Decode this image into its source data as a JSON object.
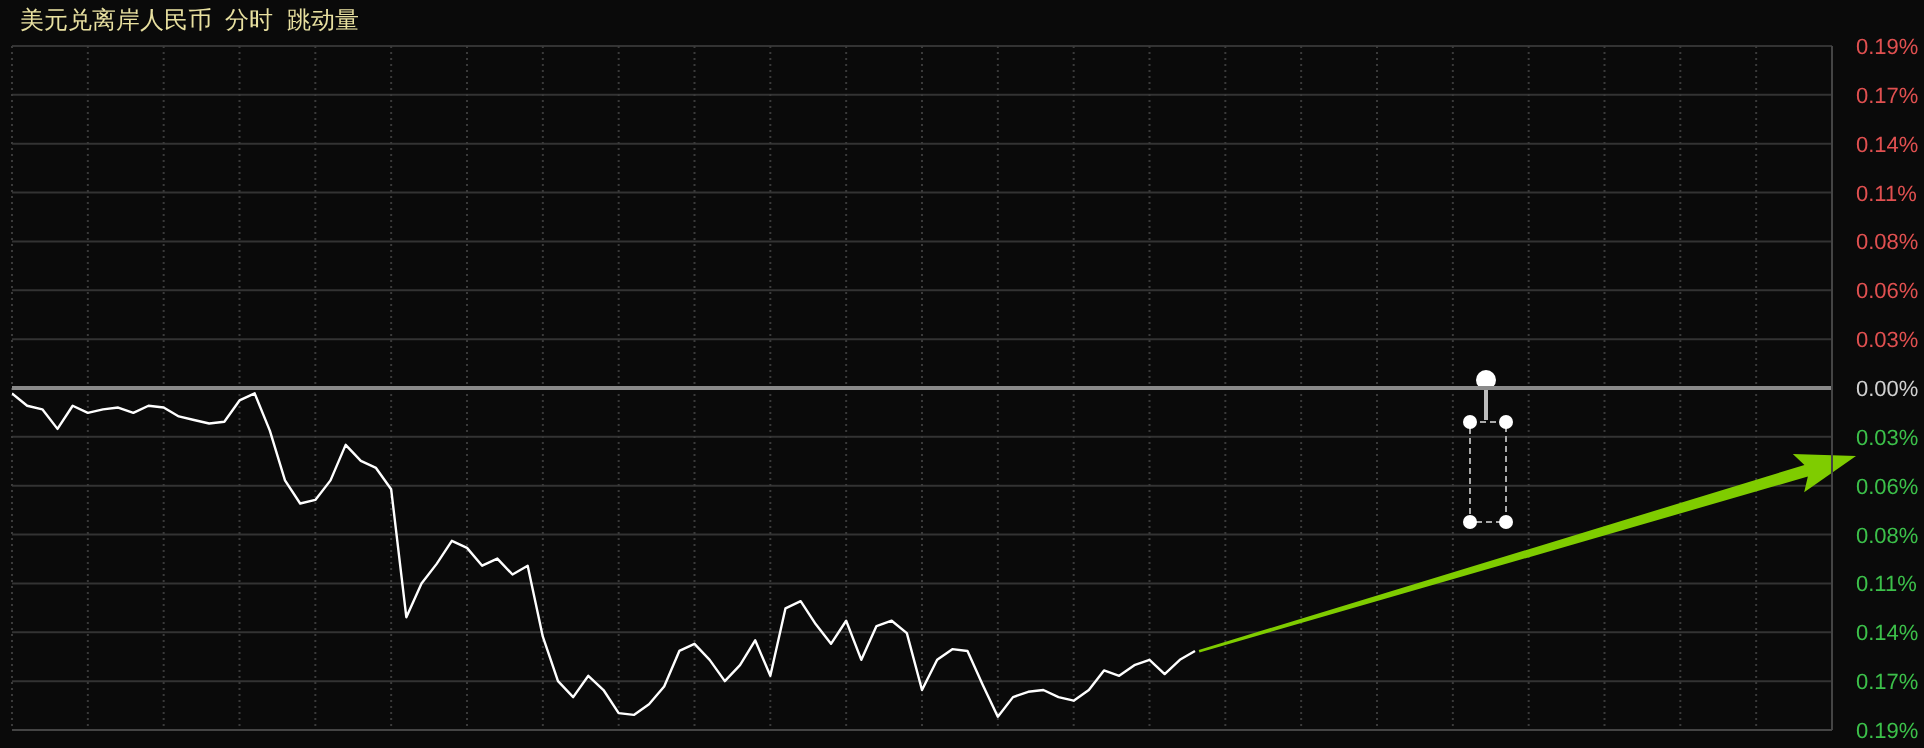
{
  "chart_data": {
    "type": "line",
    "title": "美元兑离岸人民币  分时  跳动量",
    "categories": [
      null,
      null,
      null,
      null,
      null,
      null,
      null,
      null,
      null,
      null,
      null,
      null,
      null,
      null,
      null,
      null,
      null,
      null,
      null,
      null,
      null,
      null,
      null,
      null,
      null,
      null,
      null,
      null,
      null,
      null,
      null,
      null,
      null,
      null,
      null,
      null,
      null,
      null,
      null,
      null,
      null,
      null,
      null,
      null,
      null,
      null,
      null,
      null,
      null,
      null,
      null,
      null,
      null,
      null,
      null,
      null,
      null,
      null,
      null,
      null,
      null,
      null,
      null,
      null,
      null,
      null,
      null,
      null,
      null,
      null,
      null,
      null,
      null,
      null,
      null,
      null,
      null,
      null,
      null,
      null,
      null,
      null,
      null,
      null,
      null,
      null,
      null,
      null,
      null,
      null,
      null,
      null,
      null,
      null,
      null,
      null,
      null,
      null,
      null,
      null,
      null,
      null,
      null,
      null,
      null,
      null,
      null,
      null,
      null,
      null,
      null,
      null,
      null,
      null,
      null,
      null,
      null,
      null,
      null,
      null,
      null
    ],
    "series": [
      {
        "color": "#ffffff",
        "values": [
          -0.003,
          -0.01,
          -0.012,
          -0.023,
          -0.01,
          -0.014,
          -0.012,
          -0.011,
          -0.014,
          -0.01,
          -0.011,
          -0.016,
          -0.018,
          -0.02,
          -0.019,
          -0.007,
          -0.003,
          -0.024,
          -0.052,
          -0.065,
          -0.063,
          -0.052,
          -0.032,
          -0.041,
          -0.045,
          -0.057,
          -0.129,
          -0.11,
          -0.099,
          -0.086,
          -0.09,
          -0.1,
          -0.096,
          -0.105,
          -0.1,
          -0.14,
          -0.165,
          -0.174,
          -0.162,
          -0.17,
          -0.183,
          -0.184,
          -0.178,
          -0.168,
          -0.148,
          -0.144,
          -0.153,
          -0.165,
          -0.156,
          -0.142,
          -0.162,
          -0.124,
          -0.12,
          -0.133,
          -0.144,
          -0.131,
          -0.153,
          -0.134,
          -0.131,
          -0.138,
          -0.17,
          -0.153,
          -0.147,
          -0.148,
          -0.167,
          -0.185,
          -0.174,
          -0.171,
          -0.17,
          -0.174,
          -0.176,
          -0.17,
          -0.159,
          -0.162,
          -0.156,
          -0.153,
          -0.161,
          -0.153,
          -0.148,
          null,
          null,
          null,
          null,
          null,
          null,
          null,
          null,
          null,
          null,
          null,
          null,
          null,
          null,
          null,
          null,
          null,
          null,
          null,
          null,
          null,
          null,
          null,
          null,
          null,
          null,
          null,
          null,
          null,
          null,
          null,
          null,
          null,
          null,
          null,
          null,
          null,
          null,
          null,
          null,
          null,
          null
        ]
      }
    ],
    "ylim": [
      -0.1925,
      0.1925
    ],
    "yticks": [
      {
        "value": 0.1925,
        "label": "0.19%"
      },
      {
        "value": 0.165,
        "label": "0.17%"
      },
      {
        "value": 0.1375,
        "label": "0.14%"
      },
      {
        "value": 0.11,
        "label": "0.11%"
      },
      {
        "value": 0.0825,
        "label": "0.08%"
      },
      {
        "value": 0.055,
        "label": "0.06%"
      },
      {
        "value": 0.0275,
        "label": "0.03%"
      },
      {
        "value": 0,
        "label": "0.00%"
      },
      {
        "value": -0.0275,
        "label": "0.03%"
      },
      {
        "value": -0.055,
        "label": "0.06%"
      },
      {
        "value": -0.0825,
        "label": "0.08%"
      },
      {
        "value": -0.11,
        "label": "0.11%"
      },
      {
        "value": -0.1375,
        "label": "0.14%"
      },
      {
        "value": -0.165,
        "label": "0.17%"
      },
      {
        "value": -0.1925,
        "label": "0.19%"
      }
    ],
    "ref_lines": [
      {
        "axis": "y",
        "value": 0,
        "label": null,
        "color": "#8a8a8a"
      }
    ],
    "grid": true,
    "tick_labels": "y",
    "marker": "none",
    "line_style": "solid"
  }
}
